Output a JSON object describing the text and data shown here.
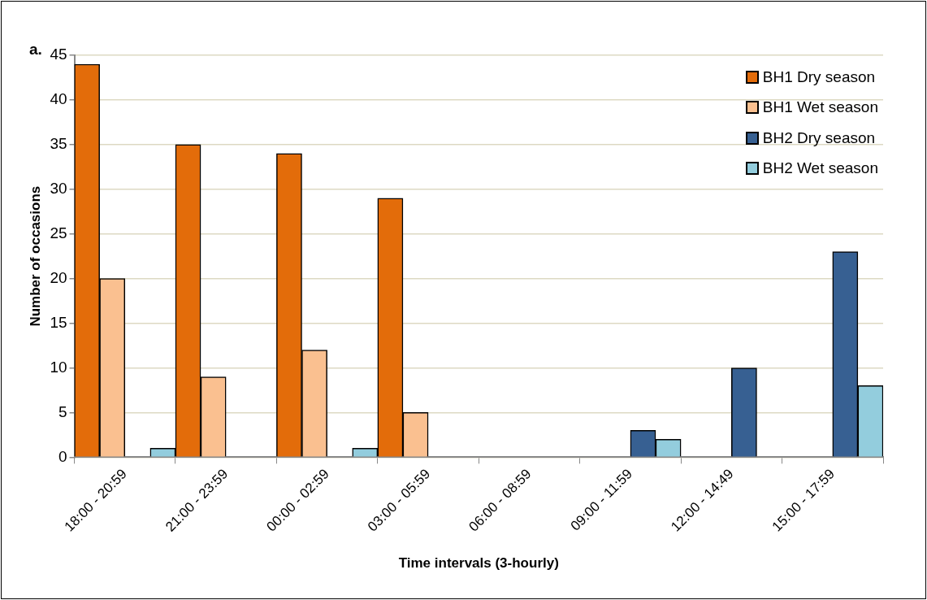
{
  "chart_data": {
    "type": "bar",
    "xlabel": "Time intervals (3-hourly)",
    "ylabel": "Number of occasions",
    "annotations": [
      "a."
    ],
    "categories": [
      "18:00 - 20:59",
      "21:00 - 23:59",
      "00:00 - 02:59",
      "03:00 - 05:59",
      "06:00 - 08:59",
      "09:00 - 11:59",
      "12:00 - 14:49",
      "15:00 - 17:59"
    ],
    "series": [
      {
        "name": "BH1 Dry season",
        "color": "#e36c0a",
        "values": [
          44,
          35,
          34,
          29,
          0,
          0,
          0,
          0
        ]
      },
      {
        "name": "BH1 Wet season",
        "color": "#fac090",
        "values": [
          20,
          9,
          12,
          5,
          0,
          0,
          0,
          0
        ]
      },
      {
        "name": "BH2 Dry season",
        "color": "#376092",
        "values": [
          0,
          0,
          0,
          0,
          0,
          3,
          10,
          23
        ]
      },
      {
        "name": "BH2 Wet season",
        "color": "#93cddd",
        "values": [
          1,
          0,
          1,
          0,
          0,
          2,
          0,
          8
        ]
      }
    ],
    "ylim": [
      0,
      45
    ],
    "yticks": [
      0,
      5,
      10,
      15,
      20,
      25,
      30,
      35,
      40,
      45
    ],
    "grid": "y",
    "legend": "top right"
  }
}
